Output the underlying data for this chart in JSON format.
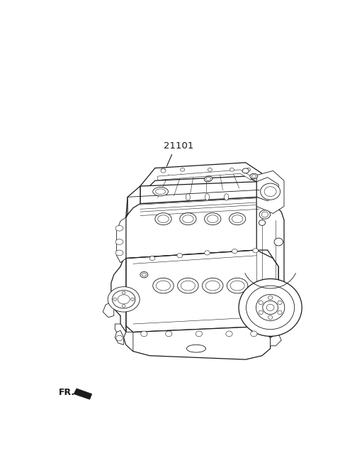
{
  "background_color": "#ffffff",
  "line_color": "#1a1a1a",
  "part_label": "21101",
  "fr_label": "FR.",
  "label_fontsize": 9.5,
  "fr_fontsize": 9,
  "fig_width": 4.8,
  "fig_height": 6.56,
  "dpi": 100,
  "lw_main": 0.9,
  "lw_detail": 0.6,
  "lw_fine": 0.4
}
